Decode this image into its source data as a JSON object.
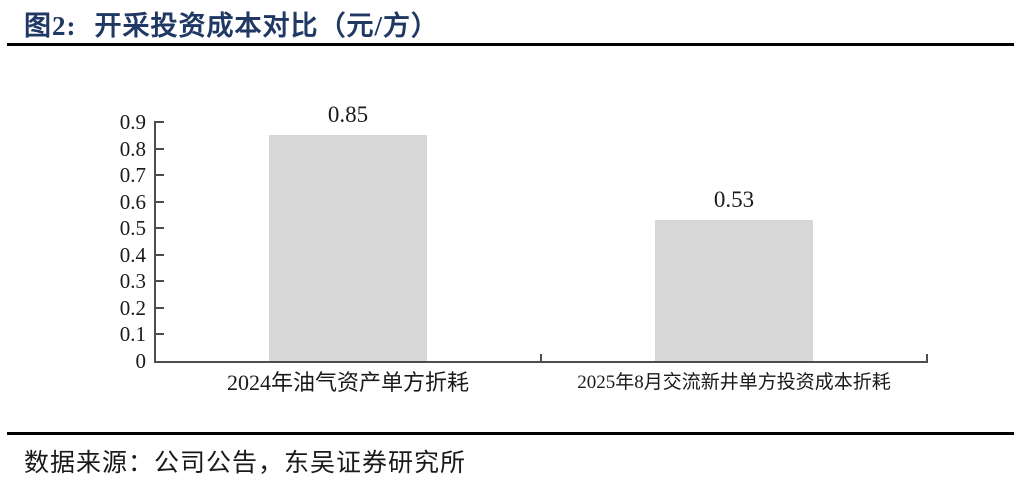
{
  "header": {
    "figure_label": "图2:",
    "title": "开采投资成本对比（元/方）",
    "title_color": "#1f3864"
  },
  "chart_data": {
    "type": "bar",
    "title": "图2: 开采投资成本对比（元/方）",
    "categories": [
      "2024年油气资产单方折耗",
      "2025年8月交流新井单方投资成本折耗"
    ],
    "values": [
      0.85,
      0.53
    ],
    "data_labels": [
      "0.85",
      "0.53"
    ],
    "xlabel": "",
    "ylabel": "",
    "ylim": [
      0,
      0.9
    ],
    "ytick_step": 0.1,
    "ytick_labels": [
      "0",
      "0.1",
      "0.2",
      "0.3",
      "0.4",
      "0.5",
      "0.6",
      "0.7",
      "0.8",
      "0.9"
    ],
    "grid": false,
    "legend": false,
    "data_label_position": "above",
    "bar_color": "#d7d7d7",
    "axis_color": "#4d4d4d"
  },
  "footer": {
    "source_text": "数据来源：公司公告，东吴证券研究所"
  }
}
